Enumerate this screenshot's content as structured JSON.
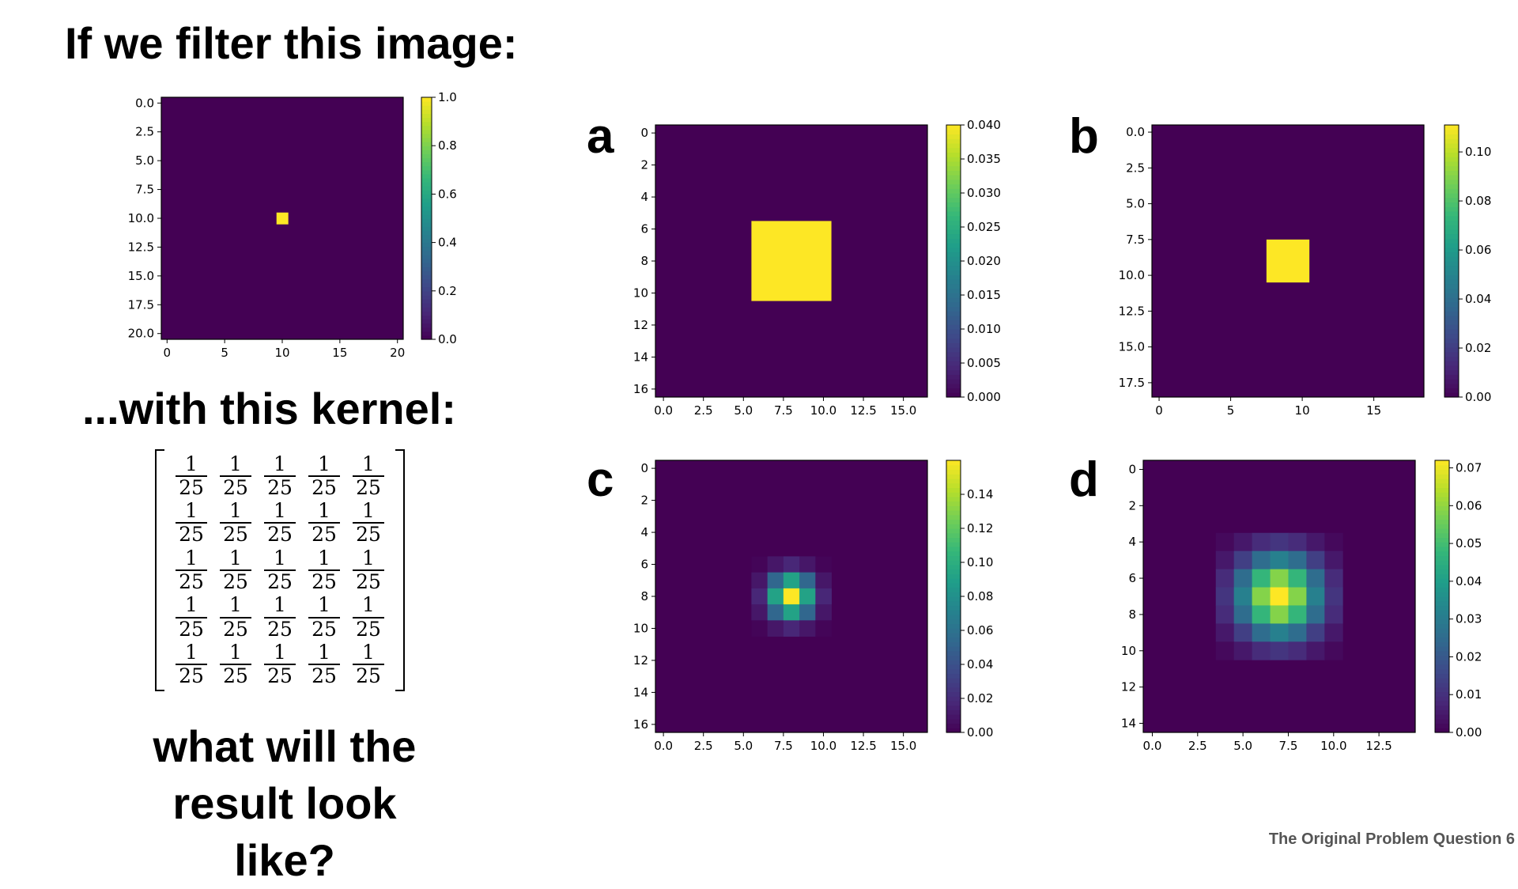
{
  "title": "If we filter this image:",
  "kernel_heading": "...with this kernel:",
  "question": "what will the result look like?",
  "footer": "The Original Problem Question 6",
  "kernel": {
    "rows": [
      [
        {
          "num": "1",
          "den": "25"
        },
        {
          "num": "1",
          "den": "25"
        },
        {
          "num": "1",
          "den": "25"
        },
        {
          "num": "1",
          "den": "25"
        },
        {
          "num": "1",
          "den": "25"
        }
      ],
      [
        {
          "num": "1",
          "den": "25"
        },
        {
          "num": "1",
          "den": "25"
        },
        {
          "num": "1",
          "den": "25"
        },
        {
          "num": "1",
          "den": "25"
        },
        {
          "num": "1",
          "den": "25"
        }
      ],
      [
        {
          "num": "1",
          "den": "25"
        },
        {
          "num": "1",
          "den": "25"
        },
        {
          "num": "1",
          "den": "25"
        },
        {
          "num": "1",
          "den": "25"
        },
        {
          "num": "1",
          "den": "25"
        }
      ],
      [
        {
          "num": "1",
          "den": "25"
        },
        {
          "num": "1",
          "den": "25"
        },
        {
          "num": "1",
          "den": "25"
        },
        {
          "num": "1",
          "den": "25"
        },
        {
          "num": "1",
          "den": "25"
        }
      ],
      [
        {
          "num": "1",
          "den": "25"
        },
        {
          "num": "1",
          "den": "25"
        },
        {
          "num": "1",
          "den": "25"
        },
        {
          "num": "1",
          "den": "25"
        },
        {
          "num": "1",
          "den": "25"
        }
      ]
    ]
  },
  "colors": {
    "viridis_low": "#440154",
    "viridis_high": "#fde725",
    "background_purple": "#441a5b"
  },
  "chart_data": [
    {
      "id": "input",
      "panel_label": "",
      "type": "heatmap",
      "x_ticks": [
        "0",
        "5",
        "10",
        "15",
        "20"
      ],
      "x_tick_values": [
        0,
        5,
        10,
        15,
        20
      ],
      "y_ticks": [
        "0.0",
        "2.5",
        "5.0",
        "7.5",
        "10.0",
        "12.5",
        "15.0",
        "17.5",
        "20.0"
      ],
      "y_tick_values": [
        0,
        2.5,
        5,
        7.5,
        10,
        12.5,
        15,
        17.5,
        20
      ],
      "xlim": [
        -0.5,
        20.5
      ],
      "ylim": [
        -0.5,
        20.5
      ],
      "colorbar_ticks": [
        "0.0",
        "0.2",
        "0.4",
        "0.6",
        "0.8",
        "1.0"
      ],
      "colorbar_tick_values": [
        0,
        0.2,
        0.4,
        0.6,
        0.8,
        1.0
      ],
      "vmin": 0,
      "vmax": 1.0,
      "cells": [
        {
          "x": 10,
          "y": 10,
          "value": 1.0
        }
      ]
    },
    {
      "id": "a",
      "panel_label": "a",
      "type": "heatmap",
      "x_ticks": [
        "0.0",
        "2.5",
        "5.0",
        "7.5",
        "10.0",
        "12.5",
        "15.0"
      ],
      "x_tick_values": [
        0,
        2.5,
        5,
        7.5,
        10,
        12.5,
        15
      ],
      "y_ticks": [
        "0",
        "2",
        "4",
        "6",
        "8",
        "10",
        "12",
        "14",
        "16"
      ],
      "y_tick_values": [
        0,
        2,
        4,
        6,
        8,
        10,
        12,
        14,
        16
      ],
      "xlim": [
        -0.5,
        16.5
      ],
      "ylim": [
        -0.5,
        16.5
      ],
      "colorbar_ticks": [
        "0.000",
        "0.005",
        "0.010",
        "0.015",
        "0.020",
        "0.025",
        "0.030",
        "0.035",
        "0.040"
      ],
      "colorbar_tick_values": [
        0,
        0.005,
        0.01,
        0.015,
        0.02,
        0.025,
        0.03,
        0.035,
        0.04
      ],
      "vmin": 0,
      "vmax": 0.04,
      "block": {
        "x0": 6,
        "x1": 10,
        "y0": 6,
        "y1": 10,
        "value": 0.04
      }
    },
    {
      "id": "b",
      "panel_label": "b",
      "type": "heatmap",
      "x_ticks": [
        "0",
        "5",
        "10",
        "15"
      ],
      "x_tick_values": [
        0,
        5,
        10,
        15
      ],
      "y_ticks": [
        "0.0",
        "2.5",
        "5.0",
        "7.5",
        "10.0",
        "12.5",
        "15.0",
        "17.5"
      ],
      "y_tick_values": [
        0,
        2.5,
        5,
        7.5,
        10,
        12.5,
        15,
        17.5
      ],
      "xlim": [
        -0.5,
        18.5
      ],
      "ylim": [
        -0.5,
        18.5
      ],
      "colorbar_ticks": [
        "0.00",
        "0.02",
        "0.04",
        "0.06",
        "0.08",
        "0.10"
      ],
      "colorbar_tick_values": [
        0,
        0.02,
        0.04,
        0.06,
        0.08,
        0.1
      ],
      "vmin": 0,
      "vmax": 0.111,
      "block": {
        "x0": 8,
        "x1": 10,
        "y0": 8,
        "y1": 10,
        "value": 0.111
      }
    },
    {
      "id": "c",
      "panel_label": "c",
      "type": "heatmap",
      "x_ticks": [
        "0.0",
        "2.5",
        "5.0",
        "7.5",
        "10.0",
        "12.5",
        "15.0"
      ],
      "x_tick_values": [
        0,
        2.5,
        5,
        7.5,
        10,
        12.5,
        15
      ],
      "y_ticks": [
        "0",
        "2",
        "4",
        "6",
        "8",
        "10",
        "12",
        "14",
        "16"
      ],
      "y_tick_values": [
        0,
        2,
        4,
        6,
        8,
        10,
        12,
        14,
        16
      ],
      "xlim": [
        -0.5,
        16.5
      ],
      "ylim": [
        -0.5,
        16.5
      ],
      "colorbar_ticks": [
        "0.00",
        "0.02",
        "0.04",
        "0.06",
        "0.08",
        "0.10",
        "0.12",
        "0.14"
      ],
      "colorbar_tick_values": [
        0,
        0.02,
        0.04,
        0.06,
        0.08,
        0.1,
        0.12,
        0.14
      ],
      "vmin": 0,
      "vmax": 0.16,
      "gaussian": {
        "cx": 8,
        "cy": 8,
        "sigma": 0.95,
        "peak": 0.16,
        "radius": 2
      }
    },
    {
      "id": "d",
      "panel_label": "d",
      "type": "heatmap",
      "x_ticks": [
        "0.0",
        "2.5",
        "5.0",
        "7.5",
        "10.0",
        "12.5"
      ],
      "x_tick_values": [
        0,
        2.5,
        5,
        7.5,
        10,
        12.5
      ],
      "y_ticks": [
        "0",
        "2",
        "4",
        "6",
        "8",
        "10",
        "12",
        "14"
      ],
      "y_tick_values": [
        0,
        2,
        4,
        6,
        8,
        10,
        12,
        14
      ],
      "xlim": [
        -0.5,
        14.5
      ],
      "ylim": [
        -0.5,
        14.5
      ],
      "colorbar_ticks": [
        "0.00",
        "0.01",
        "0.02",
        "0.03",
        "0.04",
        "0.05",
        "0.06",
        "0.07"
      ],
      "colorbar_tick_values": [
        0,
        0.01,
        0.02,
        0.03,
        0.04,
        0.05,
        0.06,
        0.07
      ],
      "vmin": 0,
      "vmax": 0.072,
      "gaussian": {
        "cx": 7,
        "cy": 7,
        "sigma": 1.55,
        "peak": 0.072,
        "radius": 3
      }
    }
  ]
}
